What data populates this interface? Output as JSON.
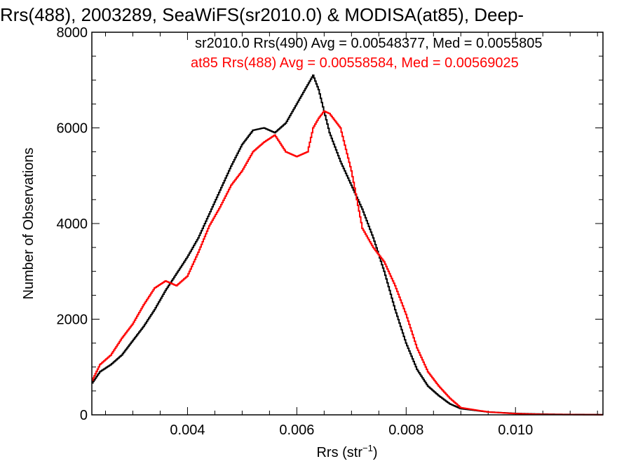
{
  "chart_data": {
    "type": "line",
    "title": "Rrs(488), 2003289, SeaWiFS(sr2010.0) & MODISA(at85), Deep-",
    "xlabel_main": "Rrs (str",
    "xlabel_sup": "−1",
    "xlabel_tail": ")",
    "ylabel": "Number of Observations",
    "xlim": [
      0.00225,
      0.0116
    ],
    "ylim": [
      0,
      8000
    ],
    "x_ticks": [
      {
        "value": 0.004,
        "label": "0.004"
      },
      {
        "value": 0.006,
        "label": "0.006"
      },
      {
        "value": 0.008,
        "label": "0.008"
      },
      {
        "value": 0.01,
        "label": "0.010"
      }
    ],
    "y_ticks": [
      {
        "value": 0,
        "label": "0"
      },
      {
        "value": 2000,
        "label": "2000"
      },
      {
        "value": 4000,
        "label": "4000"
      },
      {
        "value": 6000,
        "label": "6000"
      },
      {
        "value": 8000,
        "label": "8000"
      }
    ],
    "legend_placement": "top",
    "series": [
      {
        "name": "sr2010.0 Rrs(490)",
        "legend": "sr2010.0 Rrs(490) Avg = 0.00548377, Med = 0.0055805",
        "color": "#000000",
        "x": [
          0.00225,
          0.0024,
          0.0026,
          0.0028,
          0.003,
          0.0032,
          0.0034,
          0.0036,
          0.0038,
          0.004,
          0.0042,
          0.0044,
          0.0046,
          0.0048,
          0.005,
          0.0052,
          0.0054,
          0.0056,
          0.0058,
          0.006,
          0.0062,
          0.0063,
          0.0064,
          0.0066,
          0.0068,
          0.007,
          0.0072,
          0.0074,
          0.0076,
          0.0078,
          0.008,
          0.0082,
          0.0084,
          0.0086,
          0.0088,
          0.009,
          0.0095,
          0.01,
          0.0105,
          0.011,
          0.0116
        ],
        "y": [
          650,
          900,
          1050,
          1250,
          1550,
          1850,
          2200,
          2600,
          2950,
          3300,
          3700,
          4200,
          4700,
          5200,
          5650,
          5950,
          6000,
          5900,
          6100,
          6500,
          6900,
          7100,
          6800,
          5900,
          5300,
          4800,
          4300,
          3700,
          3000,
          2200,
          1500,
          950,
          600,
          400,
          230,
          130,
          60,
          30,
          15,
          8,
          4
        ]
      },
      {
        "name": "at85 Rrs(488)",
        "legend": "at85 Rrs(488) Avg = 0.00558584, Med = 0.00569025",
        "color": "#ff0000",
        "x": [
          0.00225,
          0.0024,
          0.0026,
          0.0028,
          0.003,
          0.0032,
          0.0034,
          0.0036,
          0.0038,
          0.004,
          0.0042,
          0.0044,
          0.0046,
          0.0048,
          0.005,
          0.0052,
          0.0054,
          0.0056,
          0.0058,
          0.006,
          0.0062,
          0.0063,
          0.0064,
          0.0065,
          0.0066,
          0.0068,
          0.007,
          0.0072,
          0.0074,
          0.0076,
          0.0078,
          0.008,
          0.0082,
          0.0084,
          0.0086,
          0.0088,
          0.009,
          0.0095,
          0.01,
          0.0105,
          0.011,
          0.0116
        ],
        "y": [
          700,
          1050,
          1250,
          1600,
          1900,
          2300,
          2650,
          2800,
          2700,
          2900,
          3400,
          3950,
          4350,
          4800,
          5100,
          5500,
          5700,
          5850,
          5500,
          5400,
          5500,
          6000,
          6200,
          6350,
          6300,
          6000,
          5100,
          3900,
          3500,
          3200,
          2700,
          2100,
          1400,
          900,
          600,
          350,
          150,
          60,
          25,
          10,
          5,
          2
        ]
      }
    ]
  }
}
